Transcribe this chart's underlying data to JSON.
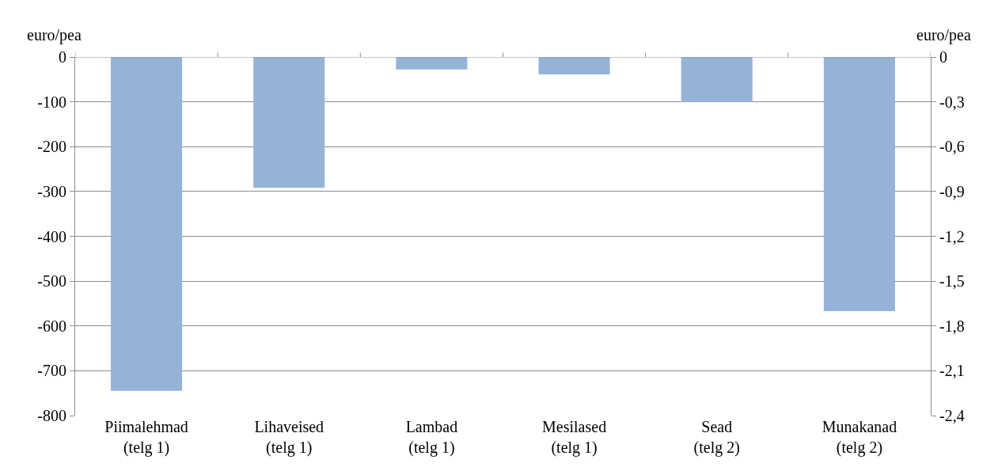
{
  "chart_data": {
    "type": "bar",
    "ylabel": "euro/pea",
    "y2label": "euro/pea",
    "categories": [
      "Piimalehmad\n(telg 1)",
      "Lihaveised\n(telg 1)",
      "Lambad\n(telg 1)",
      "Mesilased\n(telg 1)",
      "Sead\n(telg 2)",
      "Munakanad\n(telg 2)"
    ],
    "series": [
      {
        "color": "#95b3d7",
        "values": [
          -745,
          -292,
          -28,
          -39,
          -100,
          null
        ]
      },
      {
        "color": "#95b3d7",
        "axis": "y2",
        "values": [
          null,
          null,
          null,
          null,
          null,
          -1.7
        ]
      }
    ],
    "ylim": [
      -800,
      0
    ],
    "yticks": [
      -800,
      -700,
      -600,
      -500,
      -400,
      -300,
      -200,
      -100,
      0
    ],
    "y2lim": [
      -2.4,
      0
    ],
    "y2ticks": [
      {
        "value": -2.4,
        "label": "-2,4"
      },
      {
        "value": -2.1,
        "label": "-2,1"
      },
      {
        "value": -1.8,
        "label": "-1,8"
      },
      {
        "value": -1.5,
        "label": "-1,5"
      },
      {
        "value": -1.2,
        "label": "-1,2"
      },
      {
        "value": -0.9,
        "label": "-0,9"
      },
      {
        "value": -0.6,
        "label": "-0,6"
      },
      {
        "value": -0.3,
        "label": "-0,3"
      },
      0
    ],
    "grid": "y",
    "legend": false
  }
}
